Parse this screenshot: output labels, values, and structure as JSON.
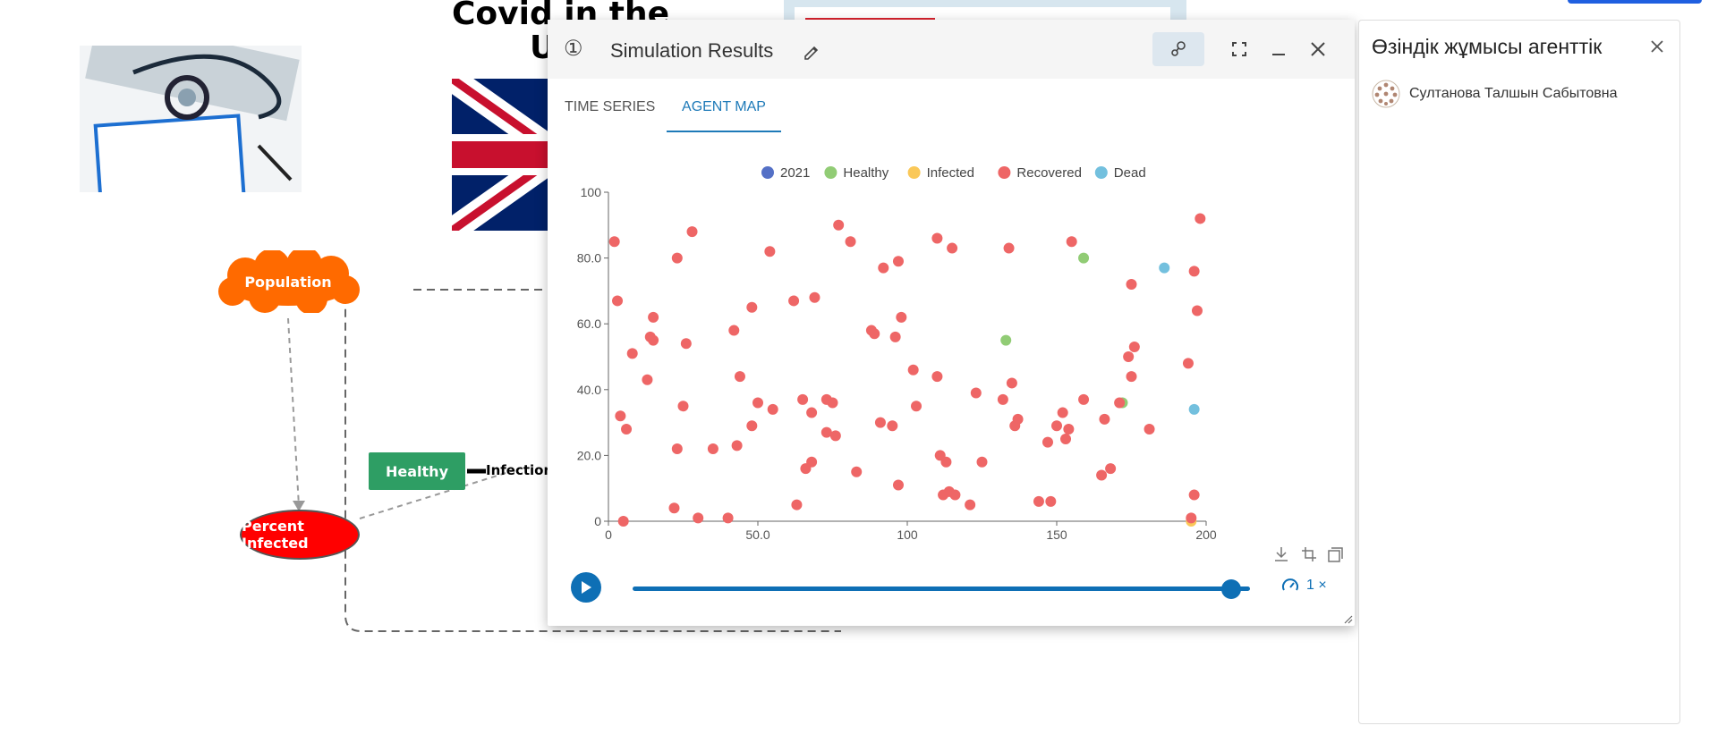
{
  "model": {
    "title_line1": "Covid in the",
    "title_line2": "U",
    "nodes": {
      "population": "Population",
      "percent_infected": "Percent Infected",
      "healthy": "Healthy",
      "infection": "Infection"
    }
  },
  "window": {
    "step_icon": "①",
    "title": "Simulation Results",
    "icons": [
      "edit-icon",
      "share-icon",
      "fullscreen-icon",
      "minimize-icon",
      "close-icon"
    ],
    "tabs": [
      {
        "label": "TIME SERIES",
        "active": false
      },
      {
        "label": "AGENT MAP",
        "active": true
      }
    ],
    "toolbox": [
      "download-icon",
      "crop-icon",
      "restore-icon"
    ],
    "player": {
      "progress": 0.97,
      "speed_label": "1 ×"
    }
  },
  "side_panel": {
    "title": "Өзіндік жұмысы агенттік",
    "user_name": "Султанова Талшын Сабытовна"
  },
  "colors": {
    "2021": "#5470c6",
    "Healthy": "#91cc75",
    "Infected": "#fac858",
    "Recovered": "#ee6666",
    "Dead": "#73c0de",
    "accent": "#0e6fb5"
  },
  "chart_data": {
    "type": "scatter",
    "title": "",
    "xlabel": "",
    "ylabel": "",
    "xlim": [
      0,
      200
    ],
    "ylim": [
      0,
      100
    ],
    "x_ticks": [
      "0",
      "50.0",
      "100",
      "150",
      "200"
    ],
    "y_ticks": [
      "0",
      "20.0",
      "40.0",
      "60.0",
      "80.0",
      "100"
    ],
    "legend": [
      "2021",
      "Healthy",
      "Infected",
      "Recovered",
      "Dead"
    ],
    "series": [
      {
        "name": "2021",
        "points": []
      },
      {
        "name": "Healthy",
        "points": [
          [
            133,
            55
          ],
          [
            159,
            80
          ],
          [
            172,
            36
          ]
        ]
      },
      {
        "name": "Infected",
        "points": [
          [
            195,
            0
          ]
        ]
      },
      {
        "name": "Dead",
        "points": [
          [
            186,
            77
          ],
          [
            196,
            34
          ]
        ]
      },
      {
        "name": "Recovered",
        "points": [
          [
            2,
            85
          ],
          [
            3,
            67
          ],
          [
            4,
            32
          ],
          [
            5,
            0
          ],
          [
            6,
            28
          ],
          [
            8,
            51
          ],
          [
            13,
            43
          ],
          [
            14,
            56
          ],
          [
            15,
            62
          ],
          [
            15,
            55
          ],
          [
            22,
            4
          ],
          [
            23,
            22
          ],
          [
            23,
            80
          ],
          [
            25,
            35
          ],
          [
            26,
            54
          ],
          [
            28,
            88
          ],
          [
            30,
            1
          ],
          [
            35,
            22
          ],
          [
            40,
            1
          ],
          [
            42,
            58
          ],
          [
            43,
            23
          ],
          [
            44,
            44
          ],
          [
            48,
            29
          ],
          [
            48,
            65
          ],
          [
            50,
            36
          ],
          [
            54,
            82
          ],
          [
            55,
            34
          ],
          [
            62,
            67
          ],
          [
            63,
            5
          ],
          [
            65,
            37
          ],
          [
            66,
            16
          ],
          [
            68,
            18
          ],
          [
            68,
            33
          ],
          [
            69,
            68
          ],
          [
            73,
            27
          ],
          [
            73,
            37
          ],
          [
            75,
            36
          ],
          [
            76,
            26
          ],
          [
            77,
            90
          ],
          [
            81,
            85
          ],
          [
            83,
            15
          ],
          [
            88,
            58
          ],
          [
            89,
            57
          ],
          [
            91,
            30
          ],
          [
            92,
            77
          ],
          [
            95,
            29
          ],
          [
            96,
            56
          ],
          [
            97,
            79
          ],
          [
            97,
            11
          ],
          [
            98,
            62
          ],
          [
            102,
            46
          ],
          [
            103,
            35
          ],
          [
            110,
            86
          ],
          [
            110,
            44
          ],
          [
            111,
            20
          ],
          [
            112,
            8
          ],
          [
            113,
            18
          ],
          [
            114,
            9
          ],
          [
            115,
            83
          ],
          [
            116,
            8
          ],
          [
            121,
            5
          ],
          [
            123,
            39
          ],
          [
            125,
            18
          ],
          [
            132,
            37
          ],
          [
            134,
            83
          ],
          [
            135,
            42
          ],
          [
            136,
            29
          ],
          [
            137,
            31
          ],
          [
            144,
            6
          ],
          [
            147,
            24
          ],
          [
            148,
            6
          ],
          [
            150,
            29
          ],
          [
            152,
            33
          ],
          [
            153,
            25
          ],
          [
            154,
            28
          ],
          [
            155,
            85
          ],
          [
            159,
            37
          ],
          [
            165,
            14
          ],
          [
            166,
            31
          ],
          [
            168,
            16
          ],
          [
            171,
            36
          ],
          [
            174,
            50
          ],
          [
            175,
            72
          ],
          [
            175,
            44
          ],
          [
            176,
            53
          ],
          [
            181,
            28
          ],
          [
            194,
            48
          ],
          [
            195,
            1
          ],
          [
            196,
            8
          ],
          [
            196,
            76
          ],
          [
            197,
            64
          ],
          [
            198,
            92
          ]
        ]
      }
    ]
  }
}
